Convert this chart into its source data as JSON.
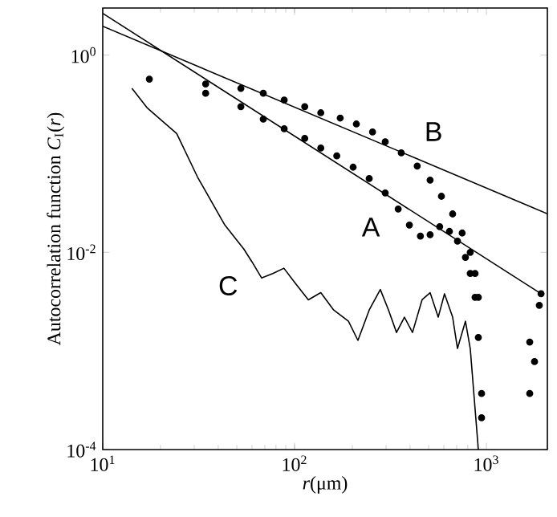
{
  "chart_data": {
    "type": "scatter",
    "xlabel": "*r*(μm)",
    "ylabel": "Autocorrelation function *C*$_{I}$(*r*)",
    "log": "xy",
    "xlim": [
      10,
      2080
    ],
    "ylim": [
      0.0001,
      3
    ],
    "xticks": [
      {
        "value": 10,
        "label": "10$^{1}$"
      },
      {
        "value": 100,
        "label": "10$^{2}$"
      },
      {
        "value": 1000,
        "label": "10$^{3}$"
      }
    ],
    "yticks": [
      {
        "value": 0.0001,
        "label": "10$^{-4}$"
      },
      {
        "value": 0.01,
        "label": "10$^{-2}$"
      },
      {
        "value": 1,
        "label": "10$^{0}$"
      }
    ],
    "grid": false,
    "series": [
      {
        "marker": "circle",
        "color": "#000000",
        "x": [
          17.5,
          34.4,
          52.5,
          68.7,
          88.3,
          113,
          137,
          173,
          210,
          255,
          297,
          360,
          436,
          509,
          583,
          667,
          748,
          824,
          873,
          908,
          1928,
          1683,
          944
        ],
        "values": [
          0.57,
          0.51,
          0.46,
          0.41,
          0.35,
          0.3,
          0.26,
          0.23,
          0.2,
          0.166,
          0.132,
          0.102,
          0.075,
          0.054,
          0.037,
          0.0245,
          0.0157,
          0.01,
          0.0061,
          0.0035,
          0.0038,
          0.00123,
          0.00021
        ]
      },
      {
        "marker": "circle",
        "color": "#000000",
        "x": [
          34.4,
          52.5,
          68.7,
          88.3,
          113,
          137,
          166,
          202,
          245,
          297,
          347,
          397,
          453,
          509,
          571,
          642,
          707,
          778,
          824,
          873,
          908,
          944,
          1888,
          1783,
          1683
        ],
        "values": [
          0.41,
          0.3,
          0.224,
          0.179,
          0.143,
          0.114,
          0.095,
          0.073,
          0.056,
          0.04,
          0.0275,
          0.0189,
          0.0146,
          0.0151,
          0.0182,
          0.0163,
          0.013,
          0.0089,
          0.0061,
          0.0035,
          0.00137,
          0.00037,
          0.0029,
          0.00078,
          0.00037
        ]
      },
      {
        "type": "line",
        "marker": "none",
        "color": "#000000",
        "x": [
          10,
          1928
        ],
        "values": [
          2.65,
          0.0038
        ]
      },
      {
        "type": "line",
        "marker": "none",
        "color": "#000000",
        "x": [
          10,
          2080
        ],
        "values": [
          1.96,
          0.0246
        ]
      },
      {
        "type": "line",
        "marker": "none",
        "color": "#000000",
        "x": [
          14.2,
          17.1,
          24.3,
          31.2,
          43.3,
          54.4,
          60,
          67.3,
          77,
          88,
          99,
          118,
          137,
          160,
          191,
          214,
          245,
          280,
          309,
          340,
          374,
          412,
          462,
          509,
          561,
          605,
          667,
          707,
          778,
          824,
          908
        ],
        "values": [
          0.46,
          0.29,
          0.16,
          0.058,
          0.0189,
          0.0108,
          0.008,
          0.0055,
          0.0061,
          0.0069,
          0.0051,
          0.0033,
          0.0039,
          0.0026,
          0.002,
          0.00128,
          0.0026,
          0.0042,
          0.0026,
          0.00154,
          0.0022,
          0.00154,
          0.0033,
          0.0039,
          0.0022,
          0.0038,
          0.0022,
          0.00106,
          0.002,
          0.00106,
          0.0001
        ]
      }
    ],
    "annotations": [
      "A",
      "B",
      "C"
    ]
  }
}
